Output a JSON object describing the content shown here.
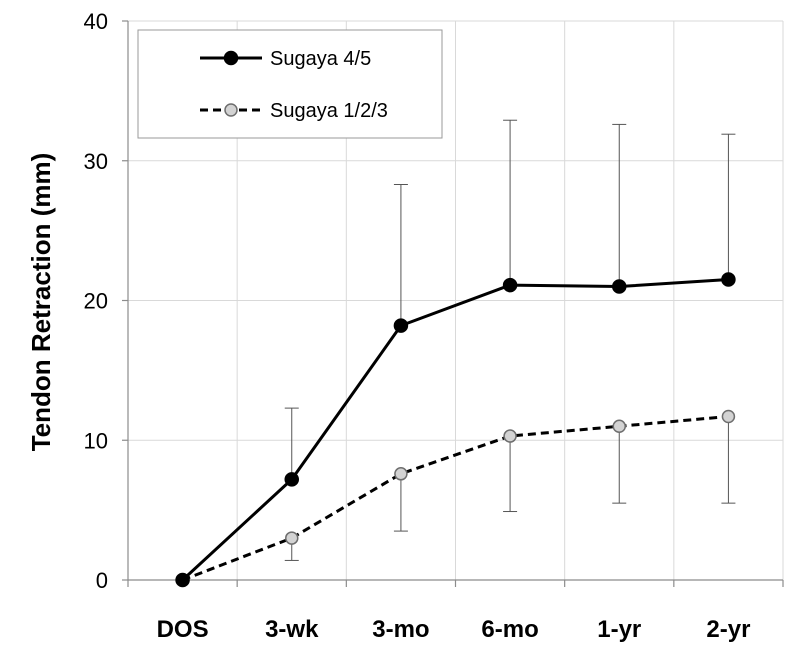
{
  "chart_data": {
    "type": "line",
    "categories": [
      "DOS",
      "3-wk",
      "3-mo",
      "6-mo",
      "1-yr",
      "2-yr"
    ],
    "ylabel": "Tendon Retraction (mm)",
    "ylim": [
      0,
      40
    ],
    "yticks": [
      0,
      10,
      20,
      30,
      40
    ],
    "grid": true,
    "legend_position": "top-left",
    "series": [
      {
        "name": "Sugaya 4/5",
        "values": [
          0,
          7.2,
          18.2,
          21.1,
          21.0,
          21.5
        ],
        "error_upper": [
          0,
          12.3,
          28.3,
          32.9,
          32.6,
          31.9
        ],
        "error_lower": [
          null,
          null,
          null,
          null,
          null,
          null
        ],
        "line_style": "solid",
        "marker_fill": "#000000",
        "color": "#000000"
      },
      {
        "name": "Sugaya 1/2/3",
        "values": [
          0,
          3.0,
          7.6,
          10.3,
          11.0,
          11.7
        ],
        "error_upper": [
          null,
          null,
          null,
          null,
          null,
          null
        ],
        "error_lower": [
          0,
          1.4,
          3.5,
          4.9,
          5.5,
          5.5
        ],
        "line_style": "dashed",
        "marker_fill": "#d3d3d3",
        "color": "#000000"
      }
    ]
  }
}
